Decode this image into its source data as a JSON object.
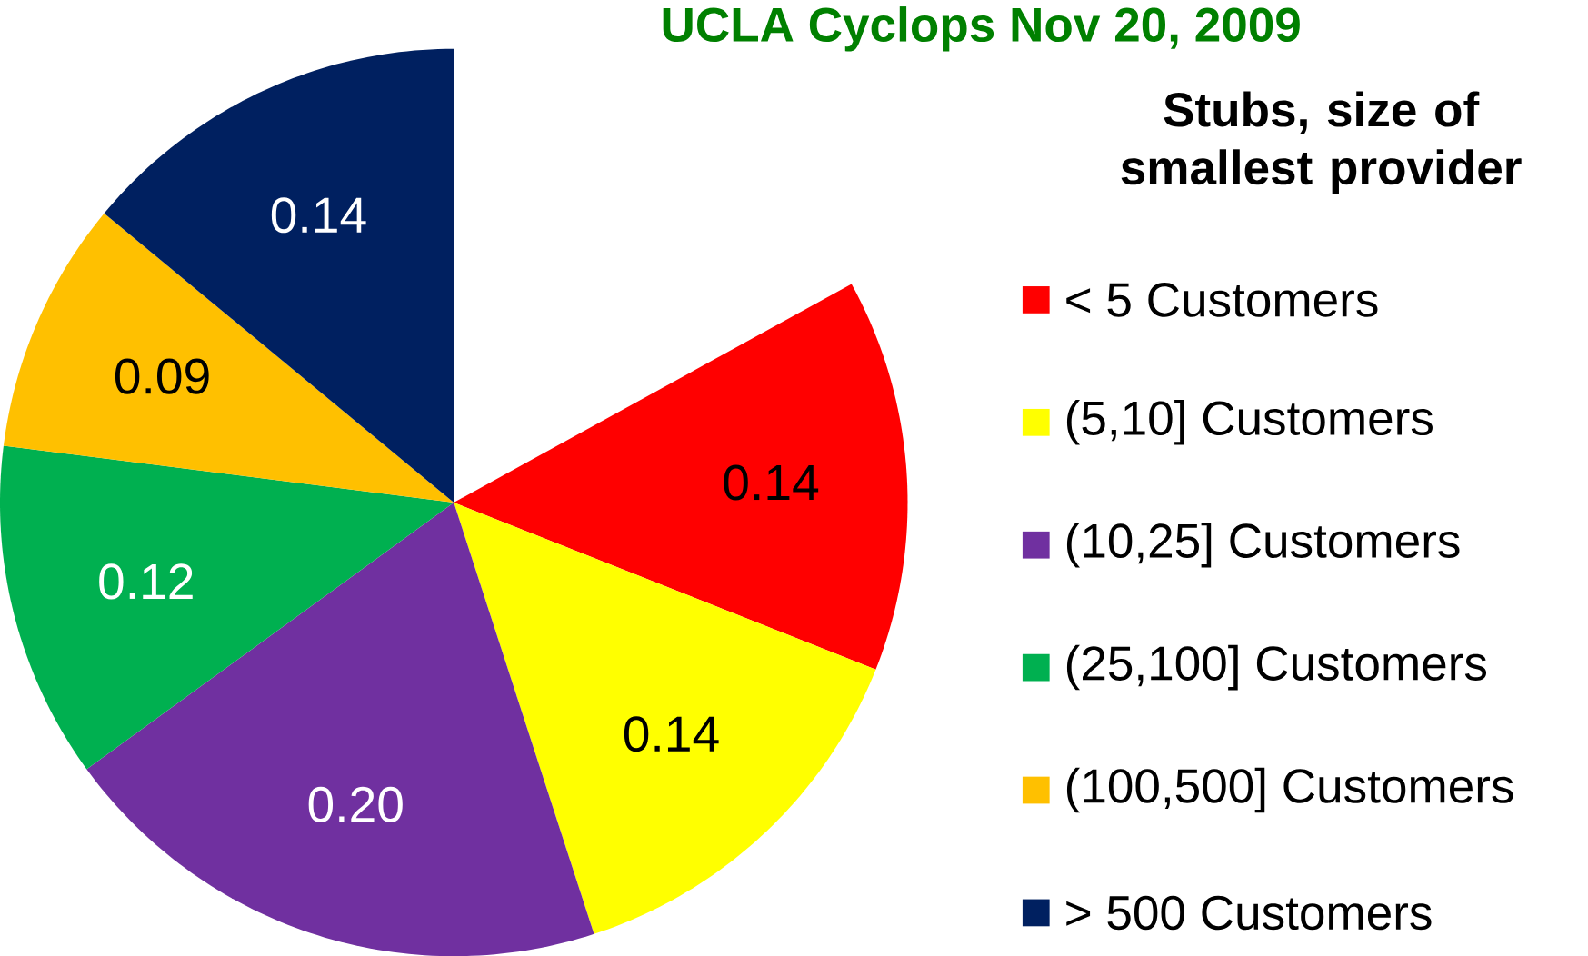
{
  "chart_data": {
    "type": "pie",
    "title": "UCLA Cyclops Nov 20, 2009",
    "legend_title": "Stubs, size of smallest provider",
    "categories": [
      "< 5 Customers",
      "(5,10] Customers",
      "(10,25] Customers",
      "(25,100] Customers",
      "(100,500] Customers",
      "> 500 Customers"
    ],
    "values": [
      0.14,
      0.14,
      0.2,
      0.12,
      0.09,
      0.14
    ],
    "colors": [
      "#ff0000",
      "#ffff00",
      "#7030a0",
      "#00b050",
      "#ffc000",
      "#002060"
    ],
    "value_labels": [
      "0.14",
      "0.14",
      "0.20",
      "0.12",
      "0.09",
      "0.14"
    ],
    "legend": "right"
  }
}
